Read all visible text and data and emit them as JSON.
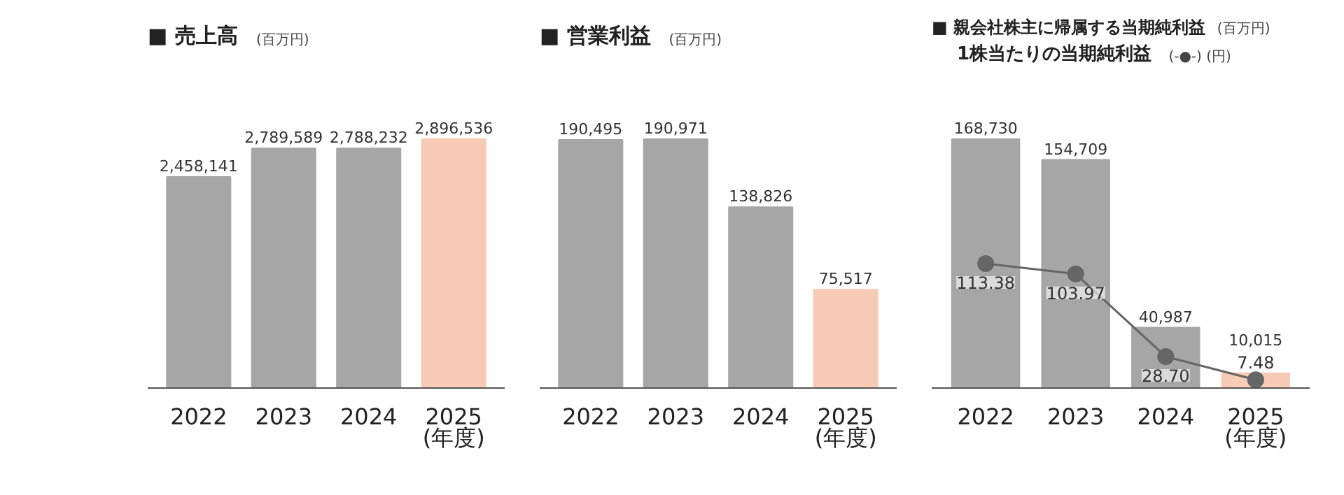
{
  "chart_data": [
    {
      "type": "bar",
      "title": "■ 売上高",
      "ylabel": "(百万円)",
      "categories": [
        "2022",
        "2023",
        "2024",
        "2025\n(年度)"
      ],
      "values": [
        2458141,
        2789589,
        2788232,
        2896536
      ],
      "value_labels": [
        "2,458,141",
        "2,789,589",
        "2,788,232",
        "2,896,536"
      ],
      "colors": [
        "#a6a6a6",
        "#a6a6a6",
        "#a6a6a6",
        "#f7cbb6"
      ]
    },
    {
      "type": "bar",
      "title": "■ 営業利益",
      "ylabel": "(百万円)",
      "categories": [
        "2022",
        "2023",
        "2024",
        "2025\n(年度)"
      ],
      "values": [
        190495,
        190971,
        138826,
        75517
      ],
      "value_labels": [
        "190,495",
        "190,971",
        "138,826",
        "75,517"
      ],
      "colors": [
        "#a6a6a6",
        "#a6a6a6",
        "#a6a6a6",
        "#f7cbb6"
      ]
    },
    {
      "type": "bar",
      "title": "■ 親会社株主に帰属する当期純利益",
      "ylabel": "(百万円)",
      "subtitle": "1株当たりの当期純利益",
      "y2label": "(-●-) (円)",
      "categories": [
        "2022",
        "2023",
        "2024",
        "2025\n(年度)"
      ],
      "marker": "circle",
      "series": [
        {
          "type": "bar",
          "values": [
            168730,
            154709,
            40987,
            10015
          ],
          "value_labels": [
            "168,730",
            "154,709",
            "40,987",
            "10,015"
          ],
          "colors": [
            "#a6a6a6",
            "#a6a6a6",
            "#a6a6a6",
            "#f7cbb6"
          ]
        },
        {
          "type": "line",
          "axis": "y2",
          "color": "#666666",
          "values": [
            113.38,
            103.97,
            28.7,
            7.48
          ],
          "value_labels": [
            "113.38",
            "103.97",
            "28.70",
            "7.48"
          ]
        }
      ]
    }
  ]
}
